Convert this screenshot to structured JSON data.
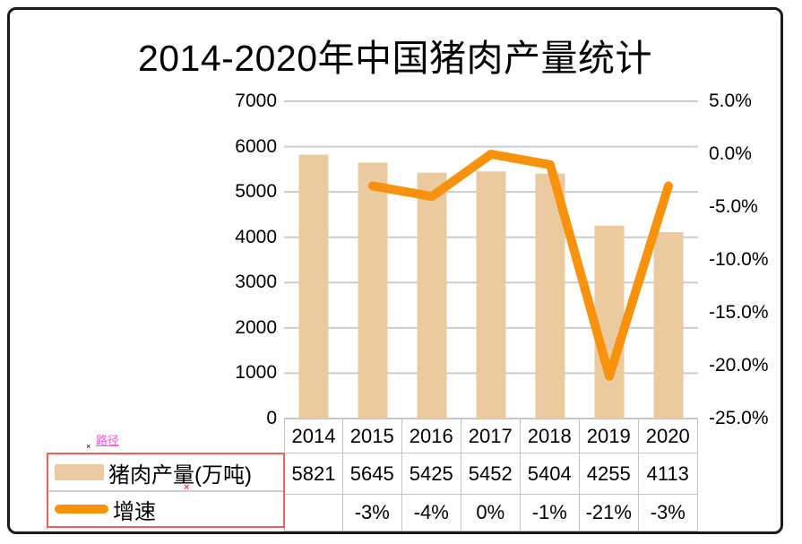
{
  "title": "2014-2020年中国猪肉产量统计",
  "legend": {
    "series1_label": "猪肉产量(万吨)",
    "series2_label": "增速"
  },
  "artifacts": {
    "path_label": "路径",
    "black_cross": "×",
    "red_cross": "×"
  },
  "chart_data": {
    "type": "bar+line combo, dual y-axis, with data table",
    "title": "2014-2020年中国猪肉产量统计",
    "categories": [
      "2014",
      "2015",
      "2016",
      "2017",
      "2018",
      "2019",
      "2020"
    ],
    "series": [
      {
        "name": "猪肉产量(万吨)",
        "type": "bar",
        "axis": "left",
        "values": [
          5821,
          5645,
          5425,
          5452,
          5404,
          4255,
          4113
        ]
      },
      {
        "name": "增速",
        "type": "line",
        "axis": "right",
        "values": [
          null,
          -3,
          -4,
          0,
          -1,
          -21,
          -3
        ]
      }
    ],
    "growth_labels": [
      "",
      "-3%",
      "-4%",
      "0%",
      "-1%",
      "-21%",
      "-3%"
    ],
    "left_axis": {
      "min": 0,
      "max": 7000,
      "ticks": [
        "7000",
        "6000",
        "5000",
        "4000",
        "3000",
        "2000",
        "1000",
        "0"
      ]
    },
    "right_axis": {
      "min": -25,
      "max": 5,
      "ticks": [
        "5.0%",
        "0.0%",
        "-5.0%",
        "-10.0%",
        "-15.0%",
        "-20.0%",
        "-25.0%"
      ]
    },
    "grid": true,
    "legend_position": "bottom-left, attached as table row headers"
  },
  "colors": {
    "bar": "#eaca9e",
    "line": "#f8920d",
    "grid": "#cccccc",
    "table_border": "#c4c4c4",
    "legend_border": "#f0625a",
    "path_pink": "#f955de",
    "red_cross": "#ff3b30",
    "frame_border": "#1a1a1a"
  }
}
